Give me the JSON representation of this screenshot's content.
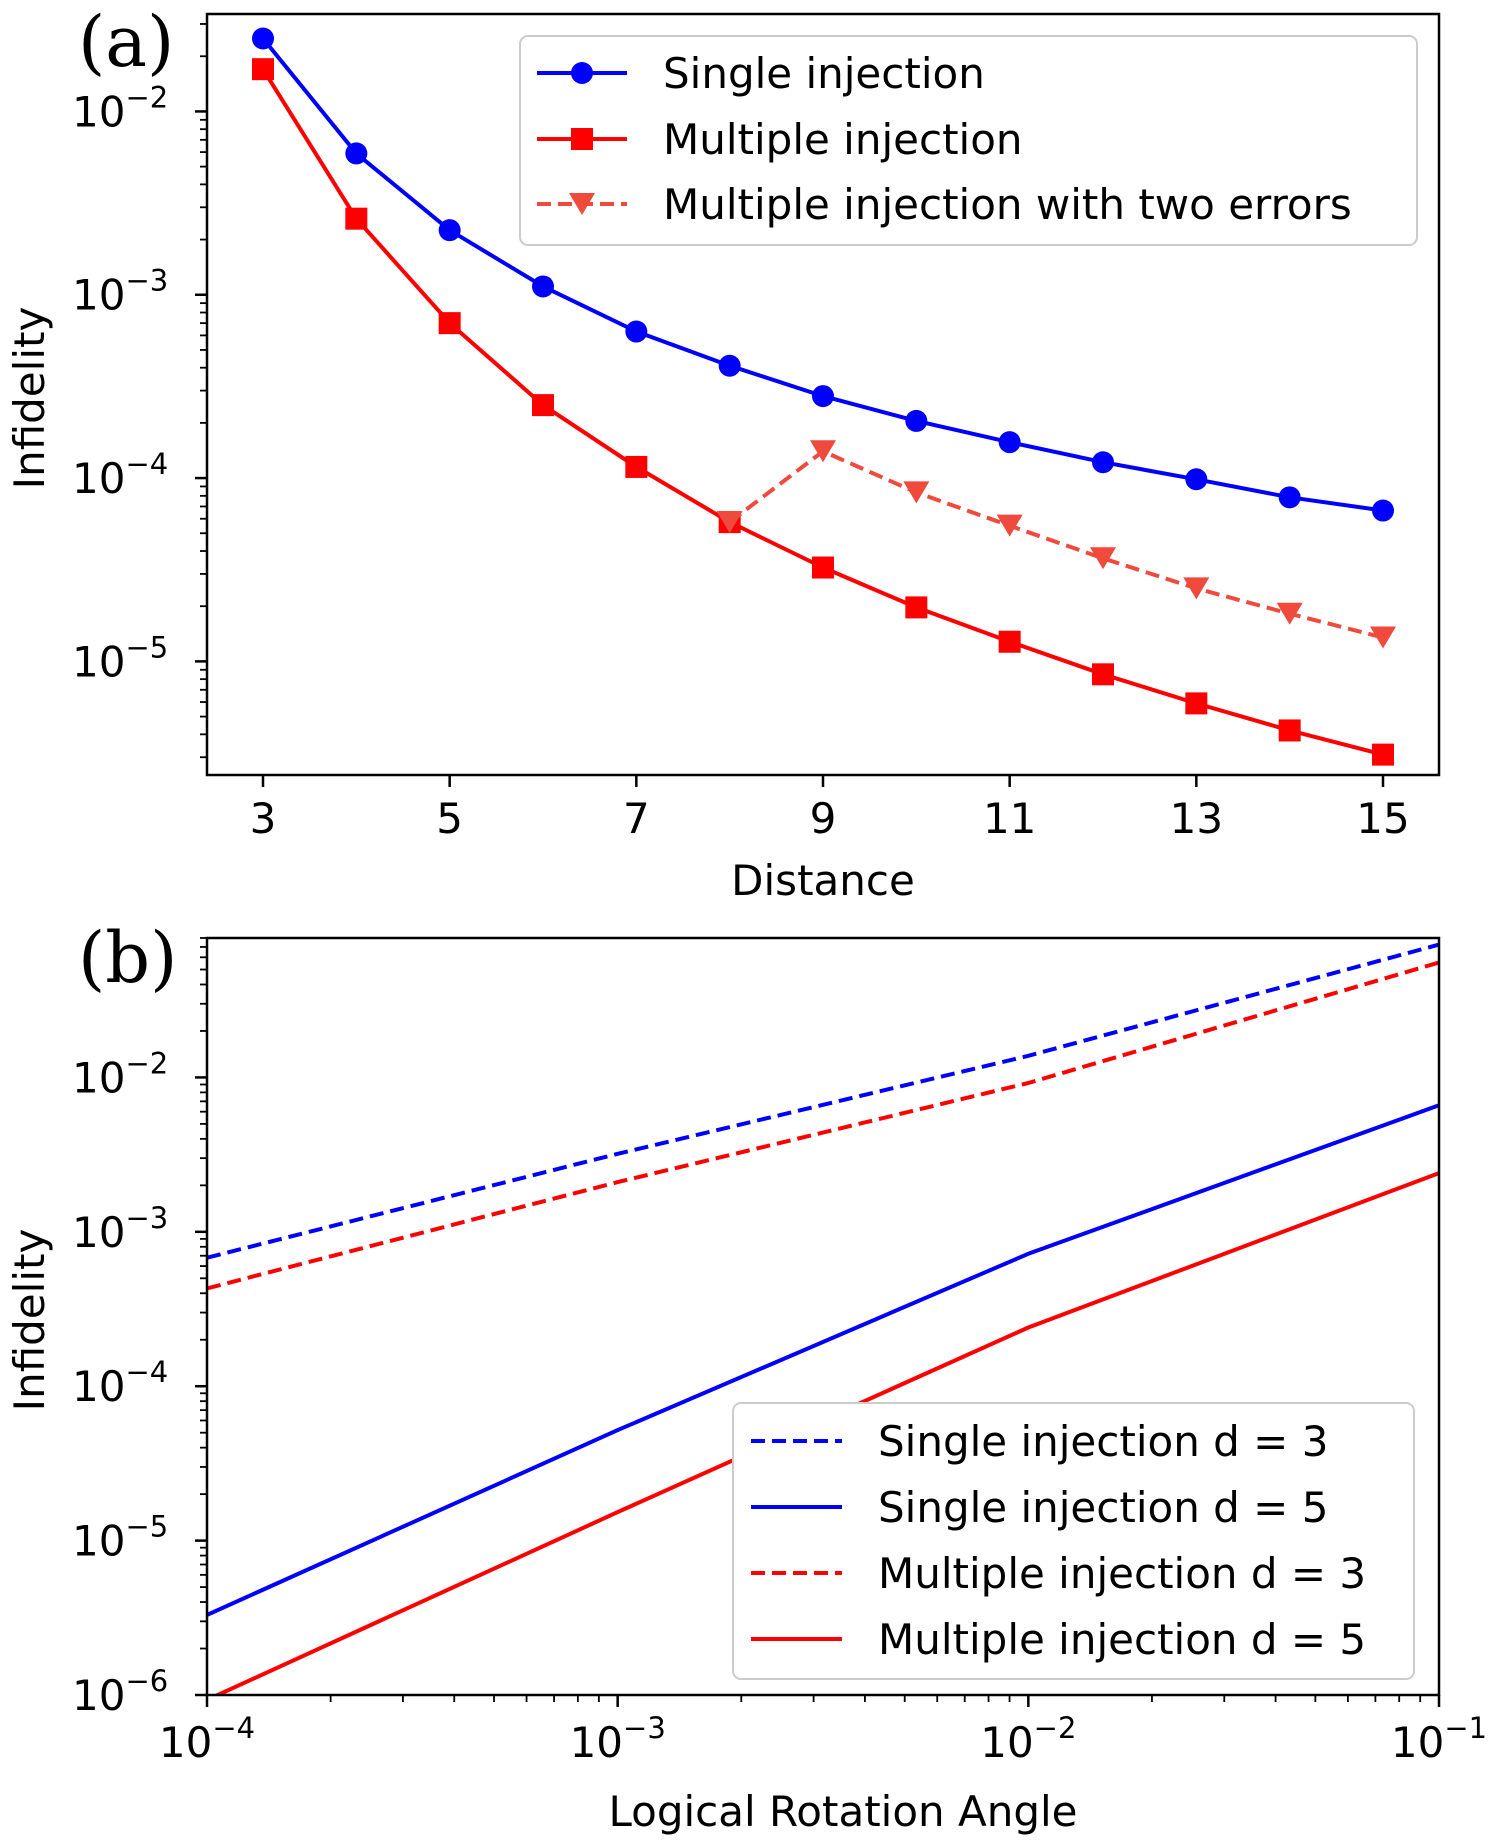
{
  "chart_data": [
    {
      "panel_label": "(a)",
      "type": "line",
      "xlabel": "Distance",
      "ylabel": "Infidelity",
      "xscale": "linear",
      "yscale": "log",
      "xlim": [
        2.4,
        15.6
      ],
      "ylim": [
        2.4e-06,
        0.034
      ],
      "x_ticks": [
        3,
        5,
        7,
        9,
        11,
        13,
        15
      ],
      "y_ticks": [
        {
          "base": "10",
          "exp": "−5",
          "value": 1e-05
        },
        {
          "base": "10",
          "exp": "−4",
          "value": 0.0001
        },
        {
          "base": "10",
          "exp": "−3",
          "value": 0.001
        },
        {
          "base": "10",
          "exp": "−2",
          "value": 0.01
        }
      ],
      "legend_position": "upper right",
      "series": [
        {
          "name": "Single injection",
          "color": "#0000ff",
          "linestyle": "solid",
          "marker": "circle",
          "x": [
            3,
            4,
            5,
            6,
            7,
            8,
            9,
            10,
            11,
            12,
            13,
            14,
            15
          ],
          "y": [
            0.025,
            0.0059,
            0.00225,
            0.00111,
            0.00063,
            0.00041,
            0.00028,
            0.000205,
            0.000157,
            0.000122,
            9.85e-05,
            7.85e-05,
            6.65e-05
          ]
        },
        {
          "name": "Multiple injection",
          "color": "#ff0000",
          "linestyle": "solid",
          "marker": "square",
          "x": [
            3,
            4,
            5,
            6,
            7,
            8,
            9,
            10,
            11,
            12,
            13,
            14,
            15
          ],
          "y": [
            0.017,
            0.0026,
            0.0007,
            0.00025,
            0.000115,
            5.75e-05,
            3.25e-05,
            1.97e-05,
            1.28e-05,
            8.5e-06,
            5.9e-06,
            4.2e-06,
            3.1e-06
          ]
        },
        {
          "name": "Multiple injection with two errors",
          "color": "#f04a3c",
          "linestyle": "dashed",
          "marker": "triangle-down",
          "x": [
            8,
            9,
            10,
            11,
            12,
            13,
            14,
            15
          ],
          "y": [
            5.75e-05,
            0.00014,
            8.35e-05,
            5.5e-05,
            3.65e-05,
            2.5e-05,
            1.82e-05,
            1.35e-05
          ]
        }
      ]
    },
    {
      "panel_label": "(b)",
      "type": "line",
      "xlabel": "Logical Rotation Angle",
      "ylabel": "Infidelity",
      "xscale": "log",
      "yscale": "log",
      "xlim": [
        0.0001,
        0.1
      ],
      "ylim": [
        1e-06,
        0.08
      ],
      "x_ticks": [
        {
          "base": "10",
          "exp": "−4",
          "value": 0.0001
        },
        {
          "base": "10",
          "exp": "−3",
          "value": 0.001
        },
        {
          "base": "10",
          "exp": "−2",
          "value": 0.01
        },
        {
          "base": "10",
          "exp": "−1",
          "value": 0.1
        }
      ],
      "y_ticks": [
        {
          "base": "10",
          "exp": "−6",
          "value": 1e-06
        },
        {
          "base": "10",
          "exp": "−5",
          "value": 1e-05
        },
        {
          "base": "10",
          "exp": "−4",
          "value": 0.0001
        },
        {
          "base": "10",
          "exp": "−3",
          "value": 0.001
        },
        {
          "base": "10",
          "exp": "−2",
          "value": 0.01
        }
      ],
      "legend_position": "lower right",
      "series": [
        {
          "name": "Single injection d = 3",
          "color": "#0000ff",
          "linestyle": "dashed",
          "x": [
            0.0001,
            0.001,
            0.01,
            0.1
          ],
          "y": [
            0.00068,
            0.0032,
            0.0138,
            0.0725
          ]
        },
        {
          "name": "Single injection d = 5",
          "color": "#0000ff",
          "linestyle": "solid",
          "x": [
            0.0001,
            0.001,
            0.01,
            0.1
          ],
          "y": [
            3.3e-06,
            5.2e-05,
            0.00072,
            0.0066
          ]
        },
        {
          "name": "Multiple injection d = 3",
          "color": "#ff0000",
          "linestyle": "dashed",
          "x": [
            0.0001,
            0.001,
            0.01,
            0.1
          ],
          "y": [
            0.00043,
            0.0021,
            0.0092,
            0.0555
          ]
        },
        {
          "name": "Multiple injection d = 5",
          "color": "#ff0000",
          "linestyle": "solid",
          "x": [
            0.0001,
            0.001,
            0.01,
            0.1
          ],
          "y": [
            9.3e-07,
            1.53e-05,
            0.00024,
            0.0024
          ]
        }
      ]
    }
  ]
}
